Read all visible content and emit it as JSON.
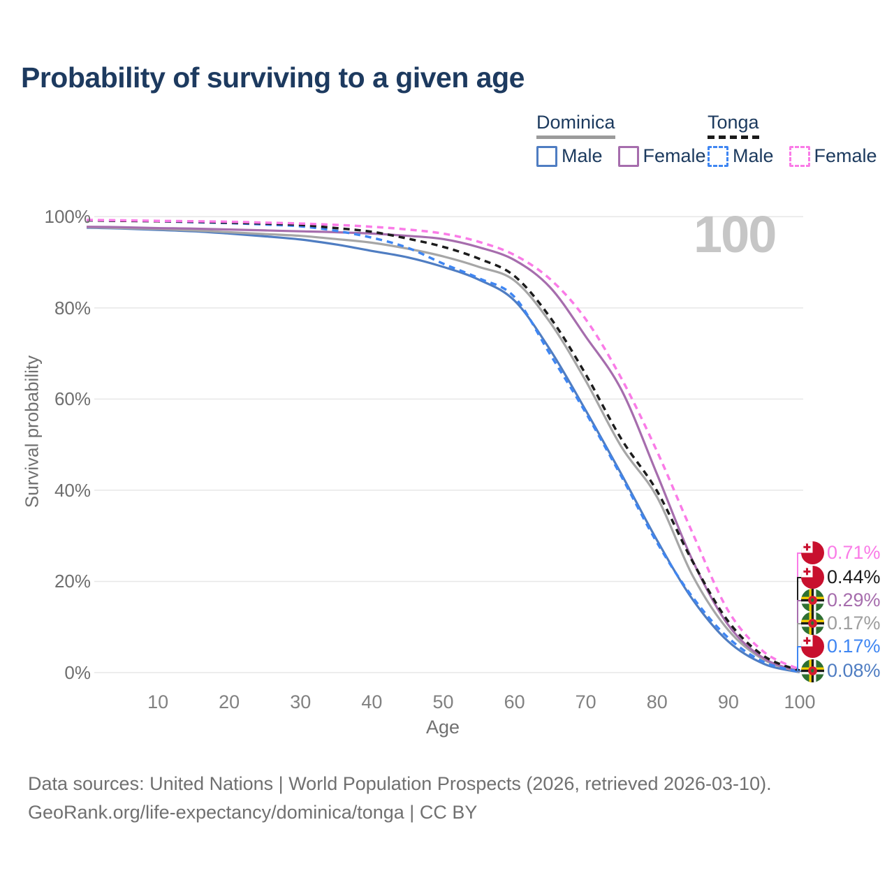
{
  "title": "Probability of surviving to a given age",
  "watermark": "100",
  "legend": {
    "groups": [
      {
        "country": "Dominica",
        "line_style": "solid",
        "underline_color": "#9b9b9b",
        "items": [
          {
            "label": "Male",
            "color": "#4f7dc2"
          },
          {
            "label": "Female",
            "color": "#a66dad"
          }
        ]
      },
      {
        "country": "Tonga",
        "line_style": "dashed",
        "underline_color": "#1a1a1a",
        "items": [
          {
            "label": "Male",
            "color": "#3f86f2"
          },
          {
            "label": "Female",
            "color": "#fa7be7"
          }
        ]
      }
    ]
  },
  "chart_data": {
    "type": "line",
    "title": "Probability of surviving to a given age",
    "xlabel": "Age",
    "ylabel": "Survival probability",
    "xlim": [
      0,
      100
    ],
    "ylim": [
      0,
      100
    ],
    "grid": "horizontal",
    "x_ticks": [
      10,
      20,
      30,
      40,
      50,
      60,
      70,
      80,
      90,
      100
    ],
    "y_ticks": [
      {
        "v": 0,
        "label": "0%"
      },
      {
        "v": 20,
        "label": "20%"
      },
      {
        "v": 40,
        "label": "40%"
      },
      {
        "v": 60,
        "label": "60%"
      },
      {
        "v": 80,
        "label": "80%"
      },
      {
        "v": 100,
        "label": "100%"
      }
    ],
    "ages": [
      0,
      5,
      10,
      15,
      20,
      25,
      30,
      35,
      40,
      45,
      50,
      55,
      60,
      65,
      70,
      75,
      80,
      85,
      90,
      95,
      100
    ],
    "series": [
      {
        "id": "dominica-male",
        "name": "Dominica Male",
        "country": "Dominica",
        "sex": "Male",
        "dash": false,
        "color": "#4f7dc2",
        "end_value": "0.08%",
        "values": [
          97.6,
          97.4,
          97.1,
          96.8,
          96.3,
          95.7,
          95.0,
          93.9,
          92.5,
          91.1,
          89.0,
          86.2,
          81.6,
          70.8,
          57.5,
          43.5,
          29.0,
          16.0,
          6.8,
          1.9,
          0.08
        ]
      },
      {
        "id": "dominica-combined",
        "name": "Dominica (both sexes)",
        "country": "Dominica",
        "sex": "Both",
        "dash": false,
        "color": "#a6a6a6",
        "end_value": "0.17%",
        "values": [
          97.7,
          97.5,
          97.3,
          97.0,
          96.6,
          96.2,
          95.8,
          95.1,
          94.3,
          93.0,
          91.3,
          89.0,
          86.0,
          76.8,
          64.0,
          49.5,
          38.5,
          21.2,
          9.3,
          2.8,
          0.17
        ]
      },
      {
        "id": "dominica-female",
        "name": "Dominica Female",
        "country": "Dominica",
        "sex": "Female",
        "dash": false,
        "color": "#a66dad",
        "end_value": "0.29%",
        "values": [
          97.8,
          97.7,
          97.5,
          97.4,
          97.2,
          97.0,
          96.8,
          96.6,
          96.3,
          95.8,
          95.1,
          93.3,
          90.5,
          84.5,
          73.7,
          62.0,
          43.5,
          24.5,
          10.4,
          3.1,
          0.29
        ]
      },
      {
        "id": "tonga-male",
        "name": "Tonga Male",
        "country": "Tonga",
        "sex": "Male",
        "dash": true,
        "color": "#3f86f2",
        "end_value": "0.17%",
        "values": [
          99.2,
          99.1,
          99.0,
          98.8,
          98.6,
          98.3,
          97.9,
          96.9,
          95.4,
          93.2,
          89.7,
          86.5,
          82.4,
          69.8,
          57.0,
          43.0,
          28.5,
          16.5,
          7.6,
          2.3,
          0.17
        ]
      },
      {
        "id": "tonga-combined",
        "name": "Tonga (both sexes)",
        "country": "Tonga",
        "sex": "Both",
        "dash": true,
        "color": "#1c1c1c",
        "end_value": "0.44%",
        "values": [
          99.2,
          99.1,
          99.0,
          98.9,
          98.7,
          98.5,
          98.2,
          97.5,
          96.7,
          95.2,
          93.4,
          90.8,
          87.0,
          77.9,
          65.4,
          51.2,
          39.8,
          24.3,
          11.2,
          3.6,
          0.44
        ]
      },
      {
        "id": "tonga-female",
        "name": "Tonga Female",
        "country": "Tonga",
        "sex": "Female",
        "dash": true,
        "color": "#fa7be7",
        "end_value": "0.71%",
        "values": [
          99.3,
          99.2,
          99.1,
          99.0,
          98.9,
          98.7,
          98.5,
          98.2,
          97.8,
          97.2,
          96.3,
          94.5,
          91.6,
          86.3,
          77.5,
          64.5,
          48.5,
          30.5,
          13.5,
          4.5,
          0.71
        ]
      }
    ],
    "end_labels": [
      {
        "text": "0.71%",
        "series": "tonga-female",
        "flag": "tonga",
        "color": "#fa7be7"
      },
      {
        "text": "0.44%",
        "series": "tonga-combined",
        "flag": "tonga",
        "color": "#1c1c1c"
      },
      {
        "text": "0.29%",
        "series": "dominica-female",
        "flag": "dominica",
        "color": "#a66dad"
      },
      {
        "text": "0.17%",
        "series": "dominica-combined",
        "flag": "dominica",
        "color": "#9e9e9e"
      },
      {
        "text": "0.17%",
        "series": "tonga-male",
        "flag": "tonga",
        "color": "#3f86f2"
      },
      {
        "text": "0.08%",
        "series": "dominica-male",
        "flag": "dominica",
        "color": "#4f7dc2"
      }
    ],
    "legend_position": "top-right"
  },
  "footer": {
    "line1": "Data sources: United Nations | World Population Prospects (2026, retrieved 2026-03-10).",
    "line2": "GeoRank.org/life-expectancy/dominica/tonga | CC BY"
  },
  "colors": {
    "title_text": "#1d3a5f",
    "axis_text": "#707070",
    "gridline": "#e7e7e7",
    "watermark": "#c6c6c6",
    "tonga_flag_red": "#C8102E",
    "dominica_flag_green": "#2E7033",
    "dominica_flag_yellow": "#FFD100",
    "dominica_disc_red": "#D41C30"
  }
}
